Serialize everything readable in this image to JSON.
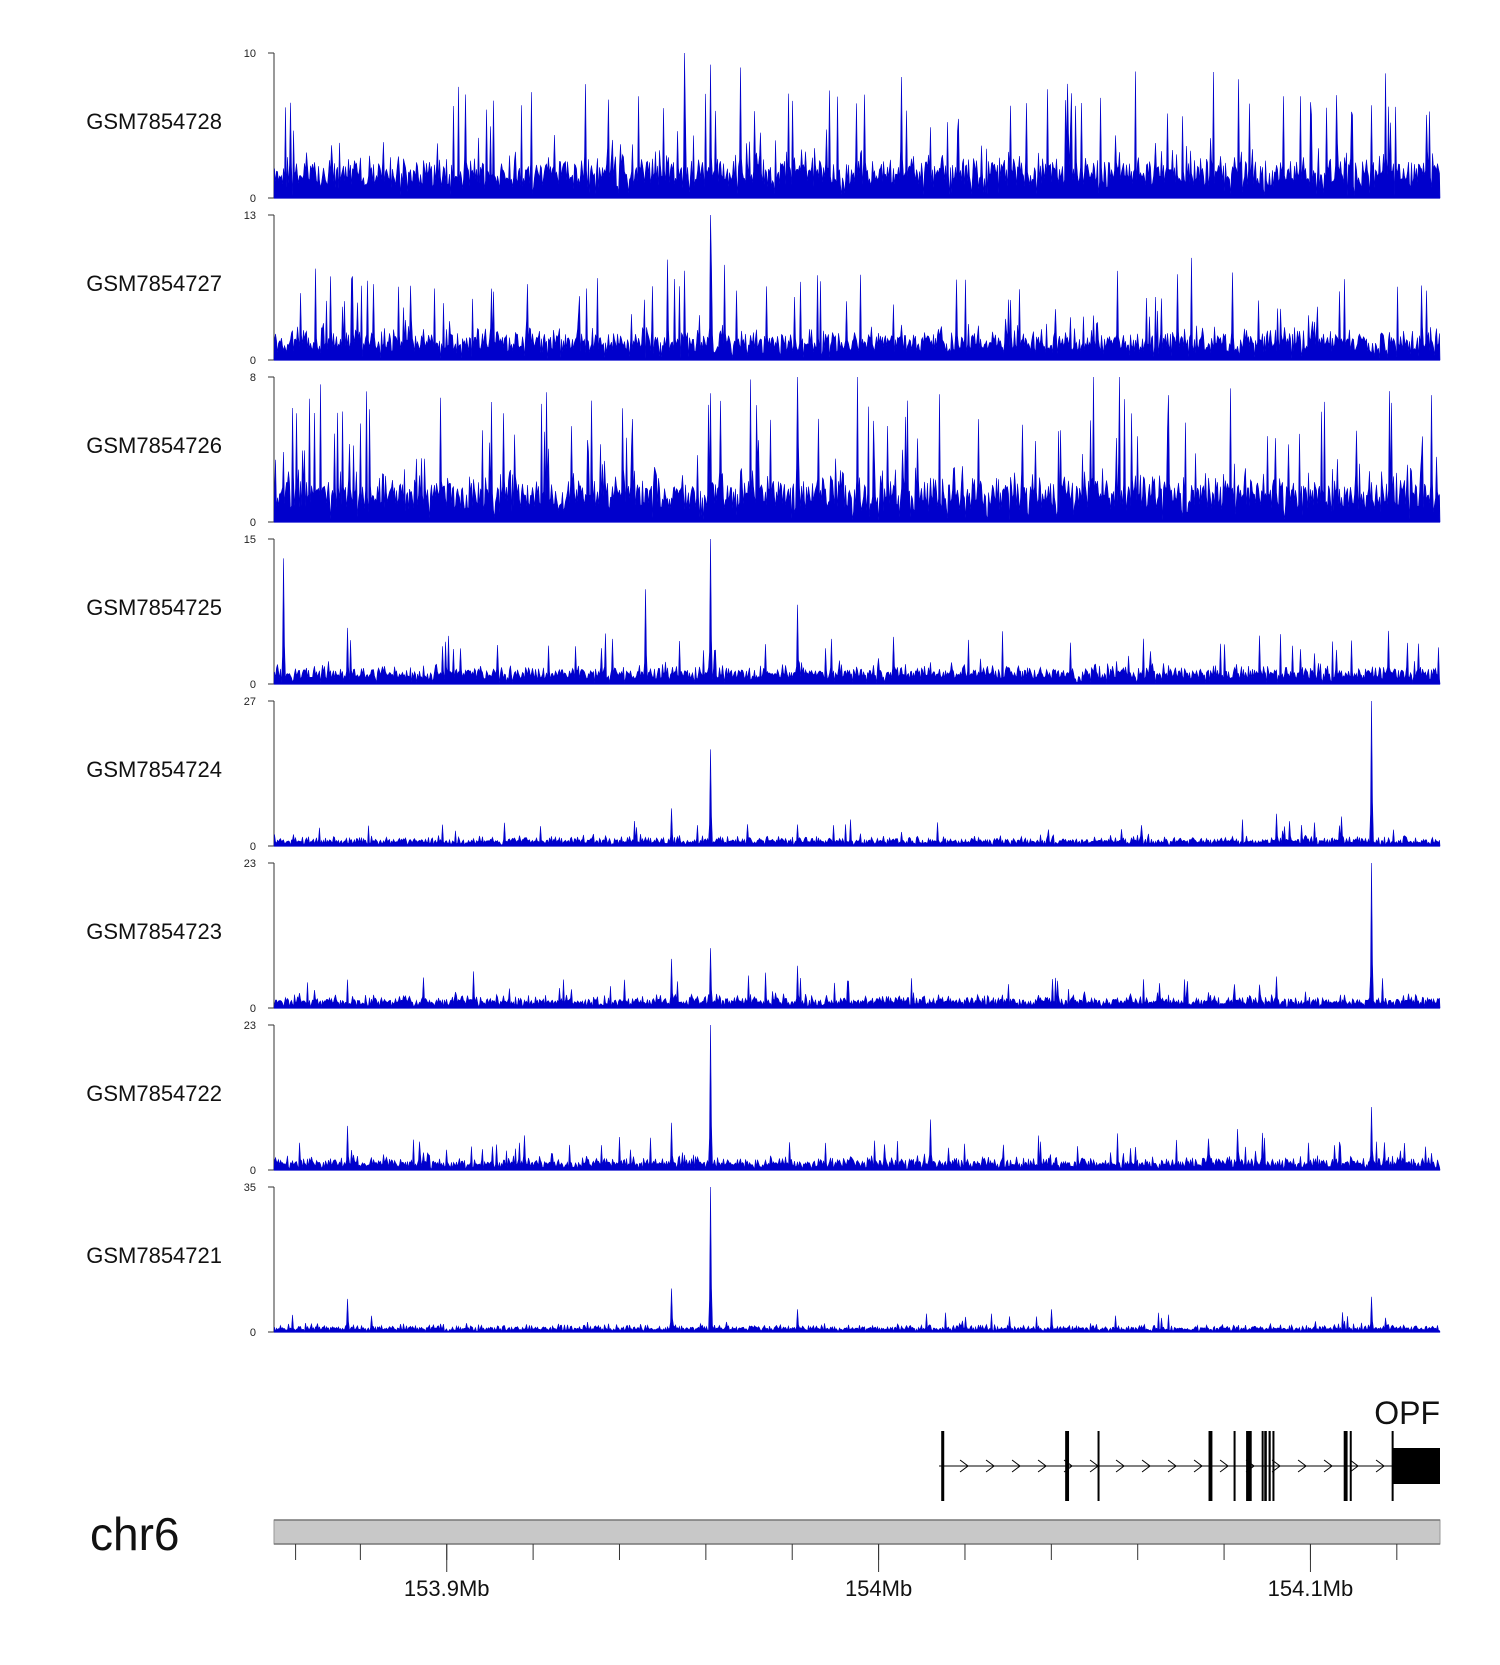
{
  "chart_data": {
    "type": "area",
    "chromosome": "chr6",
    "x_range_mb": [
      153.86,
      154.13
    ],
    "color": "#0000cc",
    "tracks": [
      {
        "name": "GSM7854728",
        "ymax": 10,
        "ytick_labels": [
          "10",
          "0"
        ],
        "baseline": 1.6,
        "noise": 1.4,
        "spike_prob": 0.09,
        "spike_max": 6.5,
        "peaks": [
          {
            "x": 153.955,
            "v": 10
          },
          {
            "x": 153.961,
            "v": 9.2
          },
          {
            "x": 153.968,
            "v": 9.0
          },
          {
            "x": 153.95,
            "v": 6.2
          },
          {
            "x": 153.979,
            "v": 7.2
          },
          {
            "x": 154.039,
            "v": 7.5
          },
          {
            "x": 154.114,
            "v": 6.4
          },
          {
            "x": 154.118,
            "v": 6.3
          }
        ]
      },
      {
        "name": "GSM7854727",
        "ymax": 13,
        "ytick_labels": [
          "13",
          "0"
        ],
        "baseline": 1.4,
        "noise": 1.6,
        "spike_prob": 0.08,
        "spike_max": 6.5,
        "peaks": [
          {
            "x": 153.961,
            "v": 13
          },
          {
            "x": 153.951,
            "v": 9.0
          },
          {
            "x": 153.955,
            "v": 8.0
          },
          {
            "x": 153.878,
            "v": 7.5
          },
          {
            "x": 153.883,
            "v": 6.8
          },
          {
            "x": 154.018,
            "v": 7.2
          },
          {
            "x": 153.974,
            "v": 6.6
          }
        ]
      },
      {
        "name": "GSM7854726",
        "ymax": 8,
        "ytick_labels": [
          "8",
          "0"
        ],
        "baseline": 1.3,
        "noise": 1.5,
        "spike_prob": 0.11,
        "spike_max": 5.8,
        "peaks": [
          {
            "x": 153.981,
            "v": 8
          },
          {
            "x": 153.961,
            "v": 7.1
          },
          {
            "x": 154.067,
            "v": 7.0
          },
          {
            "x": 154.128,
            "v": 7.0
          },
          {
            "x": 153.865,
            "v": 6.0
          },
          {
            "x": 153.913,
            "v": 6.0
          },
          {
            "x": 154.006,
            "v": 5.8
          }
        ]
      },
      {
        "name": "GSM7854725",
        "ymax": 15,
        "ytick_labels": [
          "15",
          "0"
        ],
        "baseline": 0.9,
        "noise": 1.2,
        "spike_prob": 0.05,
        "spike_max": 4.0,
        "peaks": [
          {
            "x": 153.961,
            "v": 15
          },
          {
            "x": 153.862,
            "v": 13
          },
          {
            "x": 153.946,
            "v": 9.8
          },
          {
            "x": 153.981,
            "v": 8.2
          },
          {
            "x": 153.877,
            "v": 5.8
          },
          {
            "x": 154.118,
            "v": 5.5
          },
          {
            "x": 154.088,
            "v": 5.0
          }
        ]
      },
      {
        "name": "GSM7854724",
        "ymax": 27,
        "ytick_labels": [
          "27",
          "0"
        ],
        "baseline": 0.7,
        "noise": 1.4,
        "spike_prob": 0.04,
        "spike_max": 3.5,
        "peaks": [
          {
            "x": 154.114,
            "v": 27
          },
          {
            "x": 153.961,
            "v": 18
          },
          {
            "x": 153.952,
            "v": 7.0
          },
          {
            "x": 154.092,
            "v": 6.0
          },
          {
            "x": 154.107,
            "v": 5.5
          },
          {
            "x": 154.13,
            "v": 6.0
          },
          {
            "x": 153.981,
            "v": 4.0
          }
        ]
      },
      {
        "name": "GSM7854723",
        "ymax": 23,
        "ytick_labels": [
          "23",
          "0"
        ],
        "baseline": 0.8,
        "noise": 1.5,
        "spike_prob": 0.05,
        "spike_max": 4.0,
        "peaks": [
          {
            "x": 154.114,
            "v": 23
          },
          {
            "x": 153.961,
            "v": 9.5
          },
          {
            "x": 153.952,
            "v": 7.8
          },
          {
            "x": 153.981,
            "v": 6.7
          },
          {
            "x": 153.906,
            "v": 5.8
          },
          {
            "x": 154.092,
            "v": 5.0
          },
          {
            "x": 154.13,
            "v": 5.5
          }
        ]
      },
      {
        "name": "GSM7854722",
        "ymax": 23,
        "ytick_labels": [
          "23",
          "0"
        ],
        "baseline": 0.8,
        "noise": 1.6,
        "spike_prob": 0.05,
        "spike_max": 4.0,
        "peaks": [
          {
            "x": 153.961,
            "v": 23
          },
          {
            "x": 154.114,
            "v": 10
          },
          {
            "x": 153.952,
            "v": 7.5
          },
          {
            "x": 153.877,
            "v": 7.0
          },
          {
            "x": 154.012,
            "v": 8.0
          },
          {
            "x": 154.083,
            "v": 6.5
          },
          {
            "x": 153.918,
            "v": 5.5
          }
        ]
      },
      {
        "name": "GSM7854721",
        "ymax": 35,
        "ytick_labels": [
          "35",
          "0"
        ],
        "baseline": 0.6,
        "noise": 1.5,
        "spike_prob": 0.04,
        "spike_max": 3.8,
        "peaks": [
          {
            "x": 153.961,
            "v": 35
          },
          {
            "x": 153.952,
            "v": 10.5
          },
          {
            "x": 153.877,
            "v": 8.0
          },
          {
            "x": 154.114,
            "v": 8.5
          },
          {
            "x": 154.04,
            "v": 5.5
          },
          {
            "x": 153.981,
            "v": 5.5
          }
        ]
      }
    ],
    "gene": {
      "label": "OPF",
      "tx_start_mb": 154.014,
      "tx_end_mb": 154.13,
      "strand": "+",
      "exons": [
        {
          "start": 154.0145,
          "end": 154.0152
        },
        {
          "start": 154.0432,
          "end": 154.0441
        },
        {
          "start": 154.0507,
          "end": 154.051
        },
        {
          "start": 154.0764,
          "end": 154.0773
        },
        {
          "start": 154.0822,
          "end": 154.0824
        },
        {
          "start": 154.0851,
          "end": 154.0864
        },
        {
          "start": 154.0887,
          "end": 154.089
        },
        {
          "start": 154.0893,
          "end": 154.0899
        },
        {
          "start": 154.0903,
          "end": 154.0908
        },
        {
          "start": 154.0912,
          "end": 154.0916
        },
        {
          "start": 154.1077,
          "end": 154.1086
        },
        {
          "start": 154.1091,
          "end": 154.1093
        },
        {
          "start": 154.1188,
          "end": 154.119
        },
        {
          "start": 154.119,
          "end": 154.13
        }
      ]
    },
    "axis": {
      "major_ticks": [
        153.9,
        154.0,
        154.1
      ],
      "major_tick_labels": [
        "153.9Mb",
        "154Mb",
        "154.1Mb"
      ],
      "minor_ticks": [
        153.865,
        153.88,
        153.9,
        153.92,
        153.94,
        153.96,
        153.98,
        154.0,
        154.02,
        154.04,
        154.06,
        154.08,
        154.1,
        154.12
      ]
    }
  }
}
